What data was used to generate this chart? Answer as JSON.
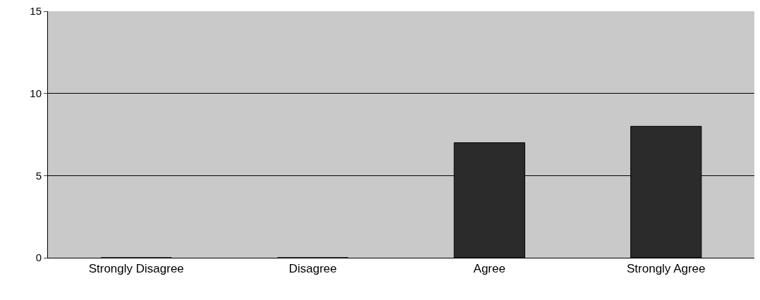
{
  "chart_data": {
    "type": "bar",
    "categories": [
      "Strongly Disagree",
      "Disagree",
      "Agree",
      "Strongly Agree"
    ],
    "values": [
      0,
      0,
      7,
      8
    ],
    "color": "#2b2b2b",
    "ylim": [
      0,
      15
    ],
    "yticks": [
      0,
      5,
      10,
      15
    ],
    "grid": "y"
  }
}
